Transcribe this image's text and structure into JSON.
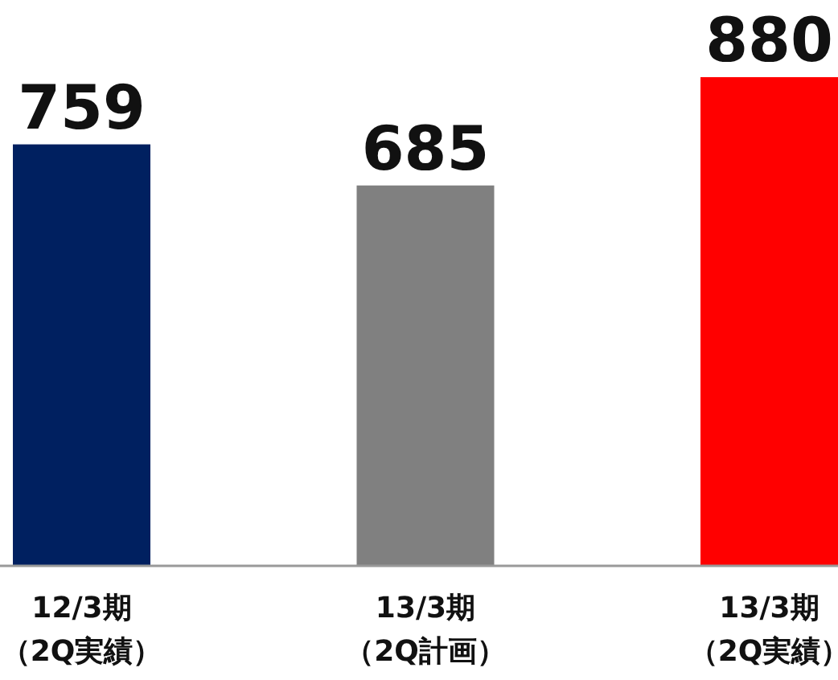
{
  "chart_data": {
    "type": "bar",
    "categories": [
      "12/3期（2Q実績）",
      "13/3期（2Q計画）",
      "13/3期（2Q実績）"
    ],
    "values": [
      759,
      685,
      880
    ],
    "colors": [
      "#002060",
      "#808080",
      "#ff0000"
    ],
    "data_labels": true
  }
}
